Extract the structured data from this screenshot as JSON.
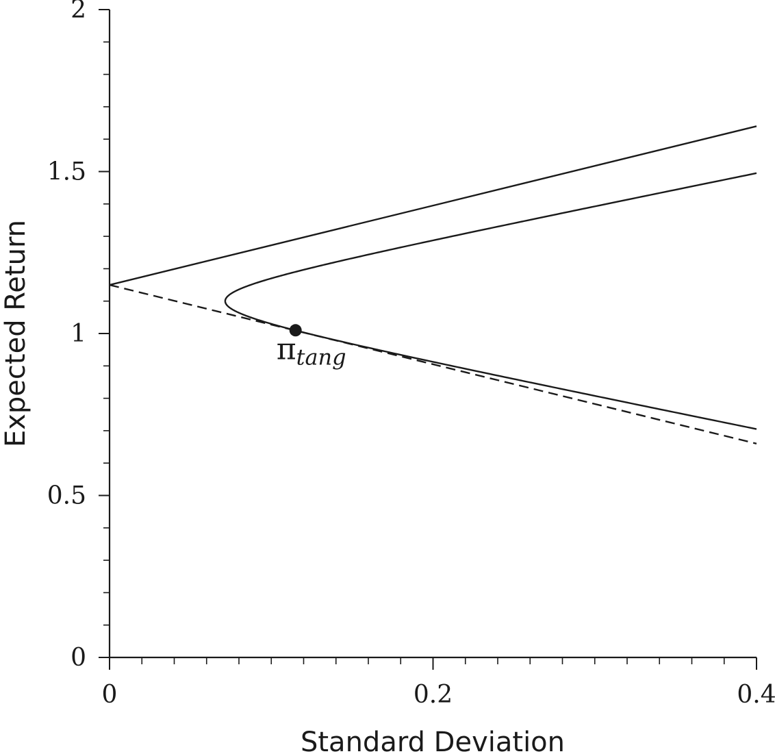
{
  "chart_data": {
    "type": "line",
    "title": "",
    "xlabel": "Standard Deviation",
    "ylabel": "Expected Return",
    "xlim": [
      0,
      0.4
    ],
    "ylim": [
      0,
      2
    ],
    "x_ticks": [
      {
        "value": 0,
        "label": "0"
      },
      {
        "value": 0.2,
        "label": "0.2"
      },
      {
        "value": 0.4,
        "label": "0.4"
      }
    ],
    "x_minor_step": 0.02,
    "y_ticks": [
      {
        "value": 0,
        "label": "0"
      },
      {
        "value": 0.5,
        "label": "0.5"
      },
      {
        "value": 1,
        "label": "1"
      },
      {
        "value": 1.5,
        "label": "1.5"
      },
      {
        "value": 2,
        "label": "2"
      }
    ],
    "y_minor_step": 0.1,
    "grid": false,
    "legend": "none",
    "series": [
      {
        "style": "solid",
        "x": [
          0,
          0.4
        ],
        "y": [
          1.15,
          1.64
        ]
      },
      {
        "style": "solid",
        "curve": "frontier-hyperbola",
        "min_variance_point": [
          0.0715,
          1.1
        ],
        "x": [
          0.0715,
          0.08,
          0.1,
          0.115,
          0.15,
          0.2,
          0.25,
          0.3,
          0.35,
          0.4
        ],
        "y_upper": [
          1.1,
          1.144,
          1.183,
          1.201,
          1.233,
          1.269,
          1.326,
          1.382,
          1.438,
          1.495
        ],
        "y_lower": [
          1.1,
          1.056,
          1.017,
          0.999,
          0.967,
          0.931,
          0.874,
          0.818,
          0.762,
          0.705
        ]
      },
      {
        "style": "dashed",
        "x": [
          0,
          0.4
        ],
        "y": [
          1.15,
          0.66
        ]
      }
    ],
    "points": [
      {
        "x": 0.115,
        "y": 1.01,
        "label_main": "π",
        "label_sub": "tang"
      }
    ]
  }
}
